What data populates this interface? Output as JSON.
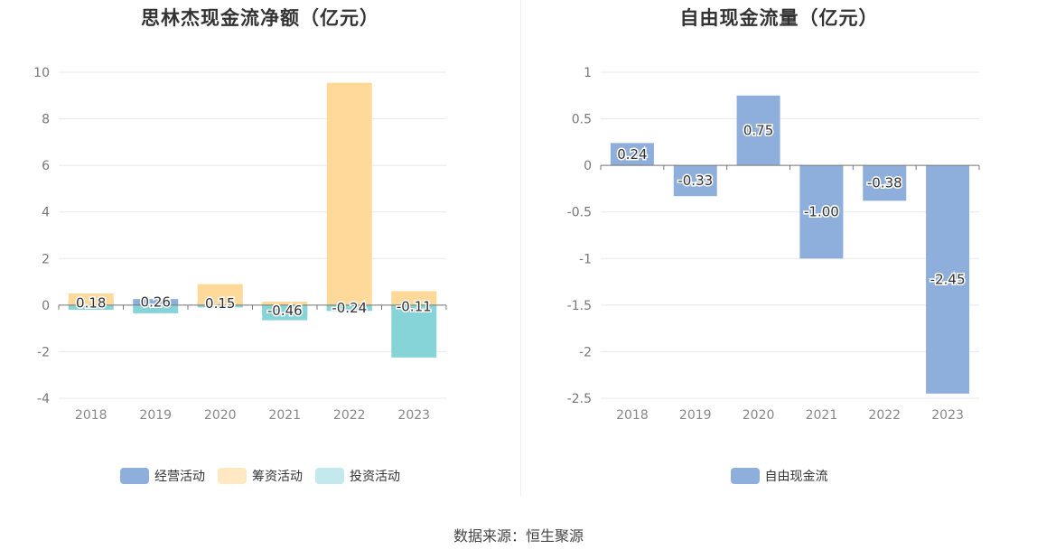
{
  "source": "数据来源：恒生聚源",
  "chart_data": [
    {
      "type": "bar",
      "title": "思林杰现金流净额（亿元）",
      "categories": [
        "2018",
        "2019",
        "2020",
        "2021",
        "2022",
        "2023"
      ],
      "ylim": [
        -4,
        10
      ],
      "yticks": [
        -4,
        -2,
        0,
        2,
        4,
        6,
        8,
        10
      ],
      "grid": true,
      "legend_position": "bottom",
      "series": [
        {
          "name": "经营活动",
          "color": "#8eaedc",
          "values": [
            0.18,
            0.26,
            0.15,
            -0.46,
            -0.24,
            -0.11
          ]
        },
        {
          "name": "筹资活动",
          "color": "#ffd999",
          "values": [
            0.5,
            0.0,
            0.9,
            0.15,
            9.55,
            0.6
          ]
        },
        {
          "name": "投资活动",
          "color": "#86d4d8",
          "values": [
            -0.2,
            -0.35,
            -0.1,
            -0.65,
            -0.25,
            -2.25
          ]
        }
      ],
      "data_labels": [
        "0.18",
        "0.26",
        "0.15",
        "-0.46",
        "-0.24",
        "-0.11"
      ],
      "legend_swatches": [
        "#8eaedc",
        "#ffe8c2",
        "#c4e9ec"
      ]
    },
    {
      "type": "bar",
      "title": "自由现金流量（亿元）",
      "categories": [
        "2018",
        "2019",
        "2020",
        "2021",
        "2022",
        "2023"
      ],
      "ylim": [
        -2.5,
        1
      ],
      "yticks": [
        -2.5,
        -2,
        -1.5,
        -1,
        -0.5,
        0,
        0.5,
        1
      ],
      "ytick_labels": [
        "-2.5",
        "-2",
        "-1.5",
        "-1",
        "-0.5",
        "0",
        "0.5",
        "1"
      ],
      "grid": true,
      "legend_position": "bottom",
      "series": [
        {
          "name": "自由现金流",
          "color": "#8eaedc",
          "values": [
            0.24,
            -0.33,
            0.75,
            -1.0,
            -0.38,
            -2.45
          ]
        }
      ],
      "data_labels": [
        "0.24",
        "-0.33",
        "0.75",
        "-1.00",
        "-0.38",
        "-2.45"
      ],
      "legend_swatches": [
        "#8eaedc"
      ]
    }
  ]
}
